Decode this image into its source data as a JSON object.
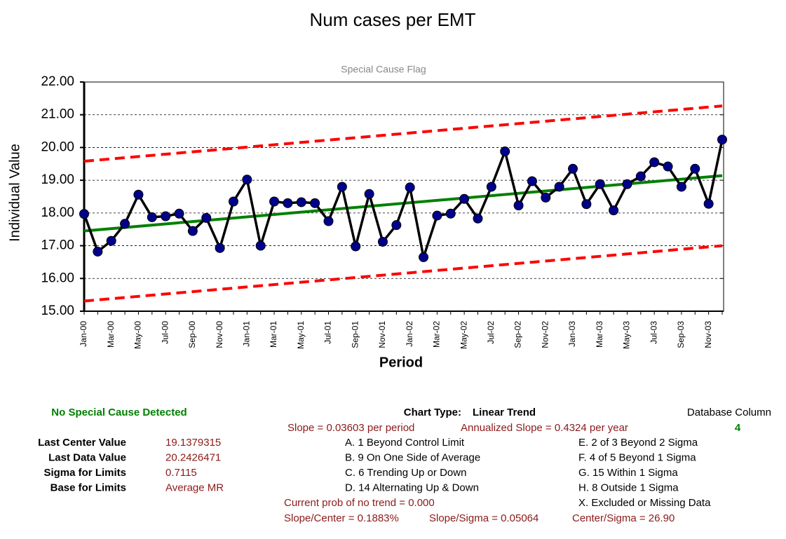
{
  "chart_data": {
    "type": "line",
    "title": "Num cases per EMT",
    "subtitle": "Special Cause Flag",
    "y_label": "Individual Value",
    "x_label": "Period",
    "categories": [
      "Jan-00",
      null,
      "Mar-00",
      null,
      "May-00",
      null,
      "Jul-00",
      null,
      "Sep-00",
      null,
      "Nov-00",
      null,
      "Jan-01",
      null,
      "Mar-01",
      null,
      "May-01",
      null,
      "Jul-01",
      null,
      "Sep-01",
      null,
      "Nov-01",
      null,
      "Jan-02",
      null,
      "Mar-02",
      null,
      "May-02",
      null,
      "Jul-02",
      null,
      "Sep-02",
      null,
      "Nov-02",
      null,
      "Jan-03",
      null,
      "Mar-03",
      null,
      "May-03",
      null,
      "Jul-03",
      null,
      "Sep-03",
      null,
      "Nov-03",
      null
    ],
    "values": [
      17.97,
      16.82,
      17.15,
      17.67,
      18.56,
      17.87,
      17.9,
      17.98,
      17.45,
      17.85,
      16.93,
      18.35,
      19.02,
      17.0,
      18.35,
      18.3,
      18.33,
      18.3,
      17.75,
      18.8,
      16.98,
      18.58,
      17.12,
      17.63,
      18.78,
      16.65,
      17.92,
      17.98,
      18.43,
      17.83,
      18.8,
      19.88,
      18.23,
      18.97,
      18.47,
      18.8,
      19.35,
      18.27,
      18.88,
      18.08,
      18.88,
      19.12,
      19.55,
      19.42,
      18.8,
      19.35,
      18.28,
      20.24
    ],
    "color": "#000000",
    "marker_color": "#00008b",
    "center_line": [
      17.45,
      19.14
    ],
    "center_color": "#008000",
    "ucl": [
      19.58,
      21.27
    ],
    "lcl": [
      15.31,
      17.0
    ],
    "limit_color": "#ff0000",
    "ylim": [
      15,
      22
    ],
    "yticks": [
      {
        "value": 15,
        "label": "15.00"
      },
      {
        "value": 16,
        "label": "16.00"
      },
      {
        "value": 17,
        "label": "17.00"
      },
      {
        "value": 18,
        "label": "18.00"
      },
      {
        "value": 19,
        "label": "19.00"
      },
      {
        "value": 20,
        "label": "20.00"
      },
      {
        "value": 21,
        "label": "21.00"
      },
      {
        "value": 22,
        "label": "22.00"
      }
    ],
    "grid": true
  },
  "panel": {
    "status": "No Special Cause Detected",
    "chart_type_label": "Chart Type:",
    "chart_type": "Linear Trend",
    "database_column_label": "Database Column",
    "database_column": 4,
    "slope": "Slope = 0.03603 per period",
    "annualized_slope": "Annualized Slope = 0.4324 per year",
    "stats": [
      {
        "label": "Last Center Value",
        "value": "19.1379315"
      },
      {
        "label": "Last Data Value",
        "value": "20.2426471"
      },
      {
        "label": "Sigma for Limits",
        "value": "0.7115"
      },
      {
        "label": "Base for Limits",
        "value": "Average MR"
      }
    ],
    "rules_left": [
      "A.  1 Beyond Control Limit",
      "B.  9 On One Side of Average",
      "C.  6 Trending Up or Down",
      "D.  14 Alternating  Up & Down"
    ],
    "rules_right": [
      "E.  2 of 3 Beyond 2 Sigma",
      "F.  4 of 5 Beyond 1 Sigma",
      "G.  15 Within 1 Sigma",
      "H.  8 Outside 1 Sigma",
      "X.  Excluded or Missing Data"
    ],
    "trend_prob": "Current prob of no trend = 0.000",
    "ratios": [
      "Slope/Center = 0.1883%",
      "Slope/Sigma = 0.05064",
      "Center/Sigma = 26.90"
    ]
  }
}
